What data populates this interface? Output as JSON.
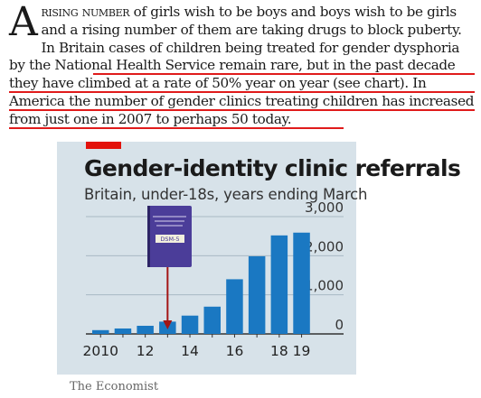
{
  "article": {
    "dropcap": "A",
    "lead_smallcaps": "rising number",
    "text_1": " of girls wish to be boys and boys wish to be girls and a rising number of them are taking drugs to block puberty. In Britain cases of children being treated for gender dysphoria by the National Health Service remain rare, ",
    "text_2": "but in the past decade they have climbed at a rate of 50% year on year (see chart). In America the number of gender clinics treating children has increased from just one in 2007 to perhaps 50 today."
  },
  "colors": {
    "highlight": "#e01b1b",
    "bar": "#1a78c2",
    "background": "#d7e2e9",
    "tag": "#e3120b",
    "arrow": "#a31515",
    "book": "#4b3d99"
  },
  "chart_data": {
    "type": "bar",
    "title": "Gender-identity clinic referrals",
    "subtitle": "Britain, under-18s, years ending March",
    "x": [
      2010,
      2011,
      2012,
      2013,
      2014,
      2015,
      2016,
      2017,
      2018,
      2019
    ],
    "x_tick_labels": [
      "2010",
      "12",
      "14",
      "16",
      "18",
      "19"
    ],
    "x_tick_positions": [
      2010,
      2012,
      2014,
      2016,
      2018,
      2019
    ],
    "values": [
      97,
      139,
      208,
      314,
      468,
      697,
      1398,
      1986,
      2519,
      2590
    ],
    "ylim": [
      0,
      3000
    ],
    "y_ticks": [
      0,
      1000,
      2000,
      3000
    ],
    "y_tick_labels": [
      "0",
      "1,000",
      "2,000",
      "3,000"
    ],
    "grid": true,
    "annotation": {
      "type": "book-arrow",
      "x": 2013
    },
    "book_label": "DSM-5"
  },
  "footer": {
    "source": "The Economist"
  }
}
